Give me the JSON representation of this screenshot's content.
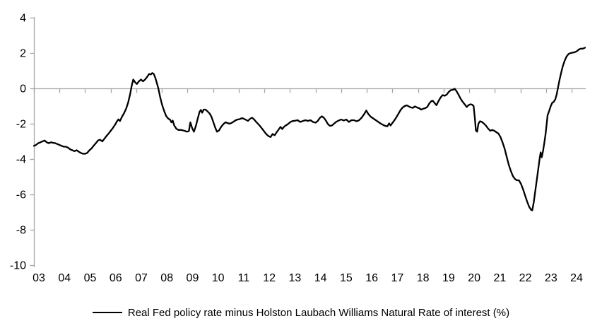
{
  "colors": {
    "background": "#ffffff",
    "axis": "#a6a6a6",
    "series_line": "#000000",
    "text": "#000000"
  },
  "chart_data": {
    "type": "line",
    "title": "",
    "legend_position": "bottom",
    "x_axis": {
      "min": 2003,
      "max": 2024.55,
      "tick_years": [
        2003,
        2004,
        2005,
        2006,
        2007,
        2008,
        2009,
        2010,
        2011,
        2012,
        2013,
        2014,
        2015,
        2016,
        2017,
        2018,
        2019,
        2020,
        2021,
        2022,
        2023,
        2024
      ],
      "tick_labels": [
        "03",
        "04",
        "05",
        "06",
        "07",
        "08",
        "09",
        "10",
        "11",
        "12",
        "13",
        "14",
        "15",
        "16",
        "17",
        "18",
        "19",
        "20",
        "21",
        "22",
        "23",
        "24"
      ]
    },
    "y_axis": {
      "min": -10,
      "max": 4,
      "tick_values": [
        4,
        2,
        0,
        -2,
        -4,
        -6,
        -8,
        -10
      ],
      "zero_line": true,
      "grid": false
    },
    "series": [
      {
        "name": "Real Fed policy rate minus Holston Laubach Williams Natural Rate of interest (%)",
        "color": "#000000",
        "points": [
          [
            2003.0,
            -3.25
          ],
          [
            2003.08,
            -3.2
          ],
          [
            2003.17,
            -3.1
          ],
          [
            2003.25,
            -3.05
          ],
          [
            2003.33,
            -3.0
          ],
          [
            2003.42,
            -2.95
          ],
          [
            2003.5,
            -3.05
          ],
          [
            2003.58,
            -3.1
          ],
          [
            2003.67,
            -3.05
          ],
          [
            2003.75,
            -3.08
          ],
          [
            2003.83,
            -3.1
          ],
          [
            2003.92,
            -3.15
          ],
          [
            2004.0,
            -3.2
          ],
          [
            2004.08,
            -3.25
          ],
          [
            2004.17,
            -3.3
          ],
          [
            2004.25,
            -3.3
          ],
          [
            2004.33,
            -3.35
          ],
          [
            2004.42,
            -3.45
          ],
          [
            2004.5,
            -3.5
          ],
          [
            2004.58,
            -3.55
          ],
          [
            2004.67,
            -3.5
          ],
          [
            2004.75,
            -3.58
          ],
          [
            2004.83,
            -3.65
          ],
          [
            2004.92,
            -3.7
          ],
          [
            2005.0,
            -3.7
          ],
          [
            2005.08,
            -3.65
          ],
          [
            2005.17,
            -3.5
          ],
          [
            2005.25,
            -3.4
          ],
          [
            2005.33,
            -3.25
          ],
          [
            2005.42,
            -3.1
          ],
          [
            2005.5,
            -2.95
          ],
          [
            2005.58,
            -2.9
          ],
          [
            2005.67,
            -3.0
          ],
          [
            2005.75,
            -2.85
          ],
          [
            2005.83,
            -2.7
          ],
          [
            2005.92,
            -2.55
          ],
          [
            2006.0,
            -2.4
          ],
          [
            2006.08,
            -2.25
          ],
          [
            2006.17,
            -2.05
          ],
          [
            2006.25,
            -1.85
          ],
          [
            2006.3,
            -1.75
          ],
          [
            2006.36,
            -1.85
          ],
          [
            2006.44,
            -1.6
          ],
          [
            2006.52,
            -1.4
          ],
          [
            2006.6,
            -1.15
          ],
          [
            2006.68,
            -0.8
          ],
          [
            2006.76,
            -0.3
          ],
          [
            2006.82,
            0.15
          ],
          [
            2006.88,
            0.5
          ],
          [
            2006.95,
            0.35
          ],
          [
            2007.02,
            0.25
          ],
          [
            2007.1,
            0.4
          ],
          [
            2007.18,
            0.5
          ],
          [
            2007.26,
            0.4
          ],
          [
            2007.34,
            0.5
          ],
          [
            2007.42,
            0.65
          ],
          [
            2007.5,
            0.82
          ],
          [
            2007.56,
            0.78
          ],
          [
            2007.62,
            0.87
          ],
          [
            2007.68,
            0.82
          ],
          [
            2007.74,
            0.6
          ],
          [
            2007.8,
            0.3
          ],
          [
            2007.86,
            0.0
          ],
          [
            2007.93,
            -0.5
          ],
          [
            2008.0,
            -0.9
          ],
          [
            2008.08,
            -1.25
          ],
          [
            2008.16,
            -1.55
          ],
          [
            2008.24,
            -1.7
          ],
          [
            2008.32,
            -1.78
          ],
          [
            2008.37,
            -1.92
          ],
          [
            2008.42,
            -1.82
          ],
          [
            2008.48,
            -2.1
          ],
          [
            2008.56,
            -2.28
          ],
          [
            2008.64,
            -2.35
          ],
          [
            2008.76,
            -2.35
          ],
          [
            2008.88,
            -2.4
          ],
          [
            2008.97,
            -2.45
          ],
          [
            2009.05,
            -2.42
          ],
          [
            2009.11,
            -1.92
          ],
          [
            2009.18,
            -2.25
          ],
          [
            2009.25,
            -2.45
          ],
          [
            2009.33,
            -2.1
          ],
          [
            2009.4,
            -1.7
          ],
          [
            2009.47,
            -1.32
          ],
          [
            2009.52,
            -1.22
          ],
          [
            2009.57,
            -1.38
          ],
          [
            2009.63,
            -1.2
          ],
          [
            2009.7,
            -1.2
          ],
          [
            2009.78,
            -1.3
          ],
          [
            2009.86,
            -1.42
          ],
          [
            2009.93,
            -1.6
          ],
          [
            2010.0,
            -1.88
          ],
          [
            2010.08,
            -2.22
          ],
          [
            2010.15,
            -2.45
          ],
          [
            2010.23,
            -2.38
          ],
          [
            2010.31,
            -2.18
          ],
          [
            2010.4,
            -2.02
          ],
          [
            2010.48,
            -1.92
          ],
          [
            2010.56,
            -1.96
          ],
          [
            2010.64,
            -2.0
          ],
          [
            2010.72,
            -1.95
          ],
          [
            2010.8,
            -1.88
          ],
          [
            2010.88,
            -1.8
          ],
          [
            2010.96,
            -1.76
          ],
          [
            2011.04,
            -1.74
          ],
          [
            2011.12,
            -1.68
          ],
          [
            2011.2,
            -1.72
          ],
          [
            2011.28,
            -1.78
          ],
          [
            2011.36,
            -1.84
          ],
          [
            2011.44,
            -1.72
          ],
          [
            2011.52,
            -1.66
          ],
          [
            2011.6,
            -1.76
          ],
          [
            2011.68,
            -1.9
          ],
          [
            2011.76,
            -2.02
          ],
          [
            2011.84,
            -2.15
          ],
          [
            2011.92,
            -2.3
          ],
          [
            2012.0,
            -2.45
          ],
          [
            2012.08,
            -2.6
          ],
          [
            2012.16,
            -2.7
          ],
          [
            2012.24,
            -2.75
          ],
          [
            2012.32,
            -2.58
          ],
          [
            2012.4,
            -2.65
          ],
          [
            2012.48,
            -2.48
          ],
          [
            2012.56,
            -2.32
          ],
          [
            2012.63,
            -2.18
          ],
          [
            2012.7,
            -2.3
          ],
          [
            2012.78,
            -2.15
          ],
          [
            2012.86,
            -2.08
          ],
          [
            2012.94,
            -2.0
          ],
          [
            2013.02,
            -1.9
          ],
          [
            2013.1,
            -1.85
          ],
          [
            2013.2,
            -1.83
          ],
          [
            2013.3,
            -1.8
          ],
          [
            2013.4,
            -1.9
          ],
          [
            2013.5,
            -1.85
          ],
          [
            2013.6,
            -1.8
          ],
          [
            2013.7,
            -1.84
          ],
          [
            2013.8,
            -1.8
          ],
          [
            2013.9,
            -1.9
          ],
          [
            2014.0,
            -1.94
          ],
          [
            2014.08,
            -1.85
          ],
          [
            2014.16,
            -1.68
          ],
          [
            2014.24,
            -1.58
          ],
          [
            2014.32,
            -1.66
          ],
          [
            2014.4,
            -1.82
          ],
          [
            2014.48,
            -2.02
          ],
          [
            2014.56,
            -2.12
          ],
          [
            2014.64,
            -2.1
          ],
          [
            2014.72,
            -2.0
          ],
          [
            2014.8,
            -1.9
          ],
          [
            2014.9,
            -1.82
          ],
          [
            2015.0,
            -1.76
          ],
          [
            2015.1,
            -1.82
          ],
          [
            2015.2,
            -1.76
          ],
          [
            2015.3,
            -1.9
          ],
          [
            2015.4,
            -1.8
          ],
          [
            2015.5,
            -1.8
          ],
          [
            2015.6,
            -1.86
          ],
          [
            2015.7,
            -1.8
          ],
          [
            2015.8,
            -1.65
          ],
          [
            2015.9,
            -1.45
          ],
          [
            2015.98,
            -1.25
          ],
          [
            2016.06,
            -1.45
          ],
          [
            2016.15,
            -1.6
          ],
          [
            2016.25,
            -1.7
          ],
          [
            2016.4,
            -1.85
          ],
          [
            2016.55,
            -2.0
          ],
          [
            2016.68,
            -2.1
          ],
          [
            2016.8,
            -2.15
          ],
          [
            2016.87,
            -1.98
          ],
          [
            2016.93,
            -2.1
          ],
          [
            2017.0,
            -1.95
          ],
          [
            2017.08,
            -1.8
          ],
          [
            2017.16,
            -1.62
          ],
          [
            2017.24,
            -1.42
          ],
          [
            2017.32,
            -1.22
          ],
          [
            2017.4,
            -1.08
          ],
          [
            2017.48,
            -1.0
          ],
          [
            2017.56,
            -0.96
          ],
          [
            2017.64,
            -1.02
          ],
          [
            2017.72,
            -1.08
          ],
          [
            2017.8,
            -1.1
          ],
          [
            2017.88,
            -1.02
          ],
          [
            2017.96,
            -1.08
          ],
          [
            2018.04,
            -1.12
          ],
          [
            2018.12,
            -1.2
          ],
          [
            2018.2,
            -1.15
          ],
          [
            2018.28,
            -1.12
          ],
          [
            2018.36,
            -1.05
          ],
          [
            2018.44,
            -0.85
          ],
          [
            2018.52,
            -0.72
          ],
          [
            2018.58,
            -0.7
          ],
          [
            2018.66,
            -0.85
          ],
          [
            2018.72,
            -0.95
          ],
          [
            2018.8,
            -0.72
          ],
          [
            2018.88,
            -0.52
          ],
          [
            2018.96,
            -0.38
          ],
          [
            2019.04,
            -0.42
          ],
          [
            2019.12,
            -0.35
          ],
          [
            2019.2,
            -0.2
          ],
          [
            2019.28,
            -0.1
          ],
          [
            2019.36,
            -0.08
          ],
          [
            2019.43,
            -0.02
          ],
          [
            2019.5,
            -0.15
          ],
          [
            2019.58,
            -0.35
          ],
          [
            2019.66,
            -0.58
          ],
          [
            2019.74,
            -0.75
          ],
          [
            2019.82,
            -0.9
          ],
          [
            2019.9,
            -1.05
          ],
          [
            2019.97,
            -0.95
          ],
          [
            2020.04,
            -0.9
          ],
          [
            2020.11,
            -0.92
          ],
          [
            2020.17,
            -1.0
          ],
          [
            2020.22,
            -1.7
          ],
          [
            2020.26,
            -2.38
          ],
          [
            2020.31,
            -2.45
          ],
          [
            2020.36,
            -2.0
          ],
          [
            2020.42,
            -1.86
          ],
          [
            2020.5,
            -1.9
          ],
          [
            2020.58,
            -2.0
          ],
          [
            2020.66,
            -2.12
          ],
          [
            2020.74,
            -2.28
          ],
          [
            2020.82,
            -2.4
          ],
          [
            2020.9,
            -2.35
          ],
          [
            2020.98,
            -2.4
          ],
          [
            2021.06,
            -2.48
          ],
          [
            2021.14,
            -2.55
          ],
          [
            2021.22,
            -2.75
          ],
          [
            2021.3,
            -3.05
          ],
          [
            2021.38,
            -3.4
          ],
          [
            2021.46,
            -3.85
          ],
          [
            2021.54,
            -4.3
          ],
          [
            2021.62,
            -4.65
          ],
          [
            2021.7,
            -4.95
          ],
          [
            2021.78,
            -5.12
          ],
          [
            2021.86,
            -5.2
          ],
          [
            2021.94,
            -5.2
          ],
          [
            2022.02,
            -5.4
          ],
          [
            2022.1,
            -5.7
          ],
          [
            2022.18,
            -6.05
          ],
          [
            2022.26,
            -6.4
          ],
          [
            2022.34,
            -6.7
          ],
          [
            2022.42,
            -6.88
          ],
          [
            2022.46,
            -6.9
          ],
          [
            2022.52,
            -6.45
          ],
          [
            2022.58,
            -5.8
          ],
          [
            2022.64,
            -5.15
          ],
          [
            2022.7,
            -4.5
          ],
          [
            2022.75,
            -3.95
          ],
          [
            2022.79,
            -3.62
          ],
          [
            2022.83,
            -3.9
          ],
          [
            2022.88,
            -3.55
          ],
          [
            2022.93,
            -3.1
          ],
          [
            2022.98,
            -2.6
          ],
          [
            2023.02,
            -2.05
          ],
          [
            2023.06,
            -1.52
          ],
          [
            2023.12,
            -1.28
          ],
          [
            2023.18,
            -1.02
          ],
          [
            2023.24,
            -0.82
          ],
          [
            2023.3,
            -0.76
          ],
          [
            2023.36,
            -0.62
          ],
          [
            2023.42,
            -0.32
          ],
          [
            2023.47,
            0.08
          ],
          [
            2023.53,
            0.5
          ],
          [
            2023.6,
            0.95
          ],
          [
            2023.66,
            1.28
          ],
          [
            2023.73,
            1.58
          ],
          [
            2023.8,
            1.8
          ],
          [
            2023.88,
            1.95
          ],
          [
            2023.96,
            2.0
          ],
          [
            2024.04,
            2.02
          ],
          [
            2024.12,
            2.05
          ],
          [
            2024.2,
            2.1
          ],
          [
            2024.28,
            2.2
          ],
          [
            2024.36,
            2.25
          ],
          [
            2024.44,
            2.25
          ],
          [
            2024.52,
            2.3
          ]
        ]
      }
    ]
  }
}
